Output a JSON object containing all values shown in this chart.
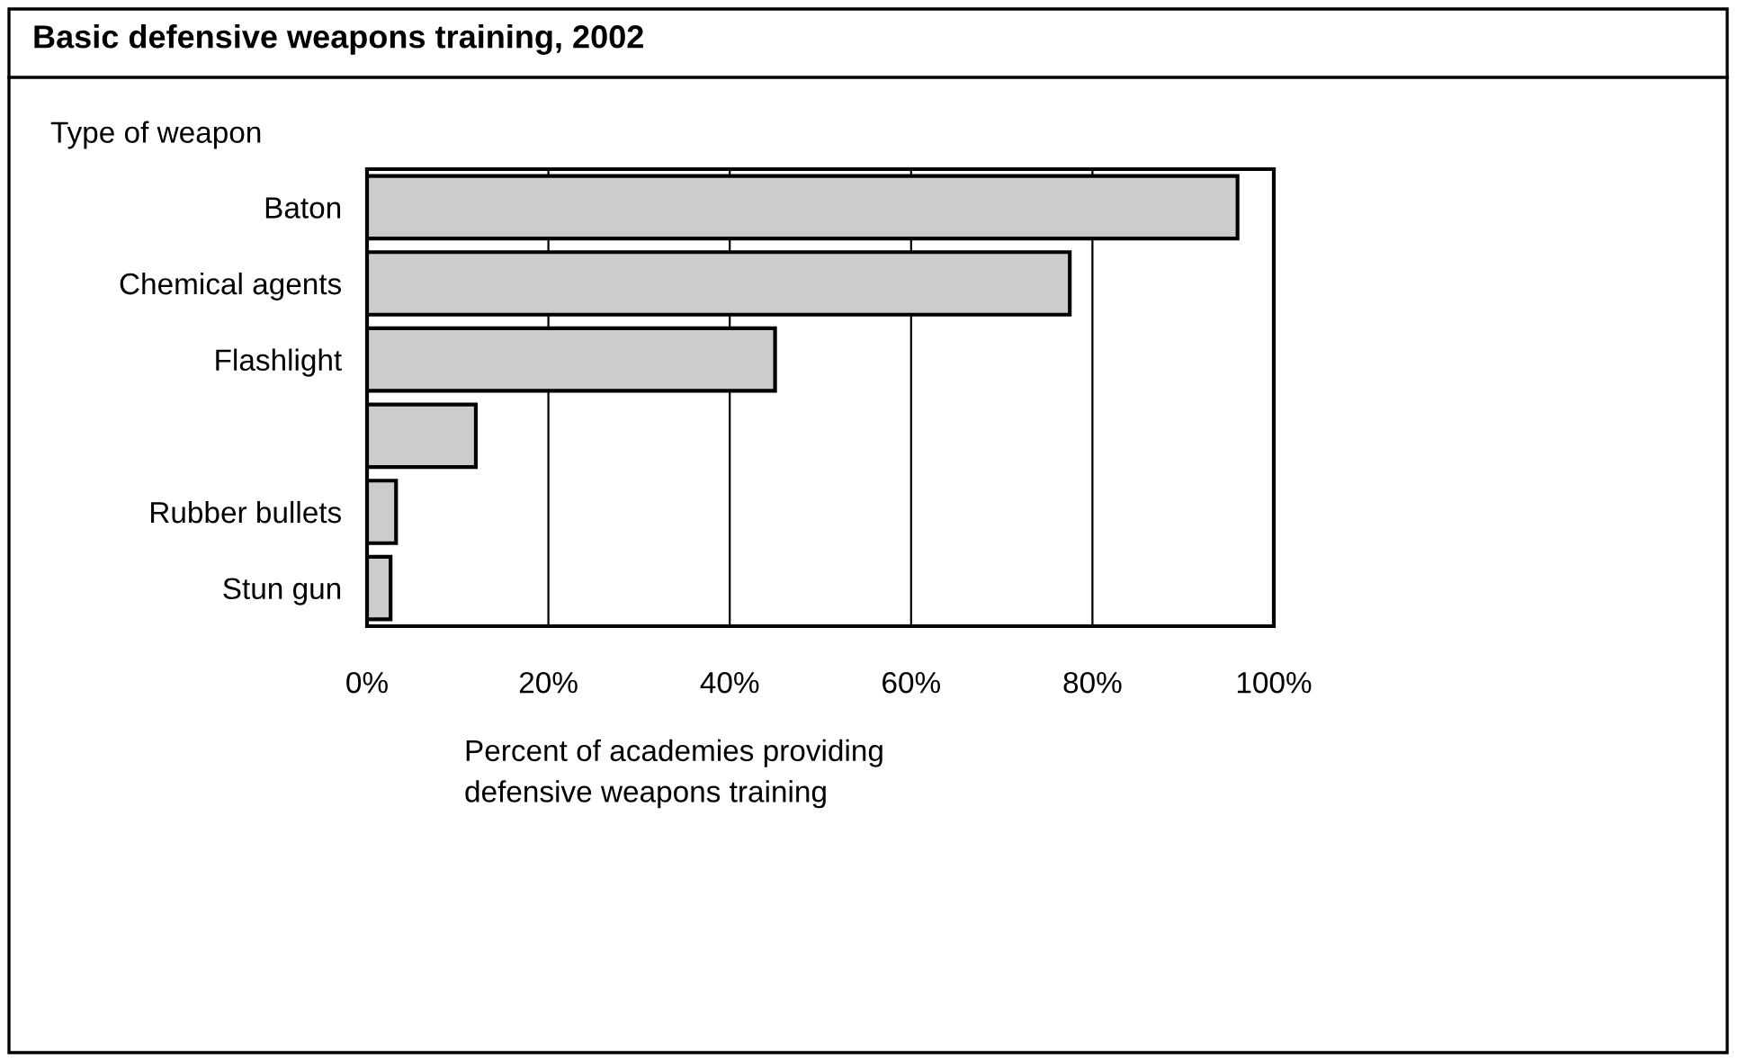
{
  "chart_data": {
    "type": "bar",
    "orientation": "horizontal",
    "title": "Basic defensive weapons training, 2002",
    "ylabel": "Type of weapon",
    "xlabel": "Percent of academies providing\ndefensive weapons training",
    "categories": [
      "Baton",
      "Chemical agents",
      "Flashlight",
      null,
      "Rubber bullets",
      "Stun gun"
    ],
    "values": [
      96,
      77.5,
      45,
      12,
      3.2,
      2.6
    ],
    "color": "#cccccc",
    "xlim": [
      0,
      100
    ],
    "xticks": [
      {
        "value": 0,
        "label": "0%"
      },
      {
        "value": 20,
        "label": "20%"
      },
      {
        "value": 40,
        "label": "40%"
      },
      {
        "value": 60,
        "label": "60%"
      },
      {
        "value": 80,
        "label": "80%"
      },
      {
        "value": 100,
        "label": "100%"
      }
    ],
    "grid": "x"
  }
}
